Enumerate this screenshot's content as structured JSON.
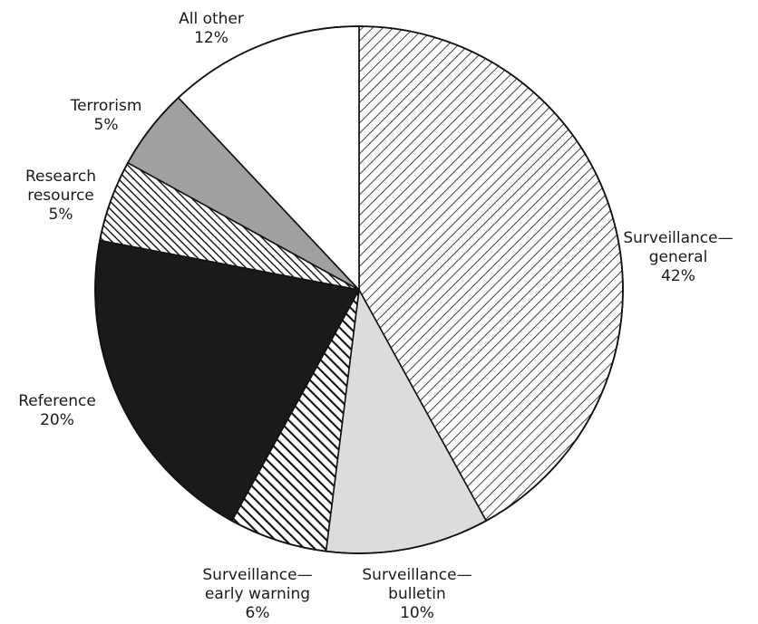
{
  "chart_data": {
    "type": "pie",
    "start": "12 o'clock",
    "direction": "clockwise",
    "slices": [
      {
        "key": "surv_general",
        "name": [
          "Surveillance—",
          "general"
        ],
        "value": 42,
        "value_label": "42%",
        "fill": "hatch-diag-down",
        "color": "#ffffff"
      },
      {
        "key": "surv_bulletin",
        "name": [
          "Surveillance—",
          "bulletin"
        ],
        "value": 10,
        "value_label": "10%",
        "fill": "solid",
        "color": "#dcdcdc"
      },
      {
        "key": "surv_early",
        "name": [
          "Surveillance—",
          "early warning"
        ],
        "value": 6,
        "value_label": "6%",
        "fill": "hatch-diag-up-heavy",
        "color": "#1a1a1a"
      },
      {
        "key": "reference",
        "name": [
          "Reference"
        ],
        "value": 20,
        "value_label": "20%",
        "fill": "solid",
        "color": "#1a1a1a"
      },
      {
        "key": "research",
        "name": [
          "Research",
          "resource"
        ],
        "value": 5,
        "value_label": "5%",
        "fill": "hatch-diag-up",
        "color": "#1a1a1a"
      },
      {
        "key": "terrorism",
        "name": [
          "Terrorism"
        ],
        "value": 5,
        "value_label": "5%",
        "fill": "solid",
        "color": "#a0a0a0"
      },
      {
        "key": "all_other",
        "name": [
          "All other"
        ],
        "value": 12,
        "value_label": "12%",
        "fill": "solid",
        "color": "#ffffff"
      }
    ]
  }
}
